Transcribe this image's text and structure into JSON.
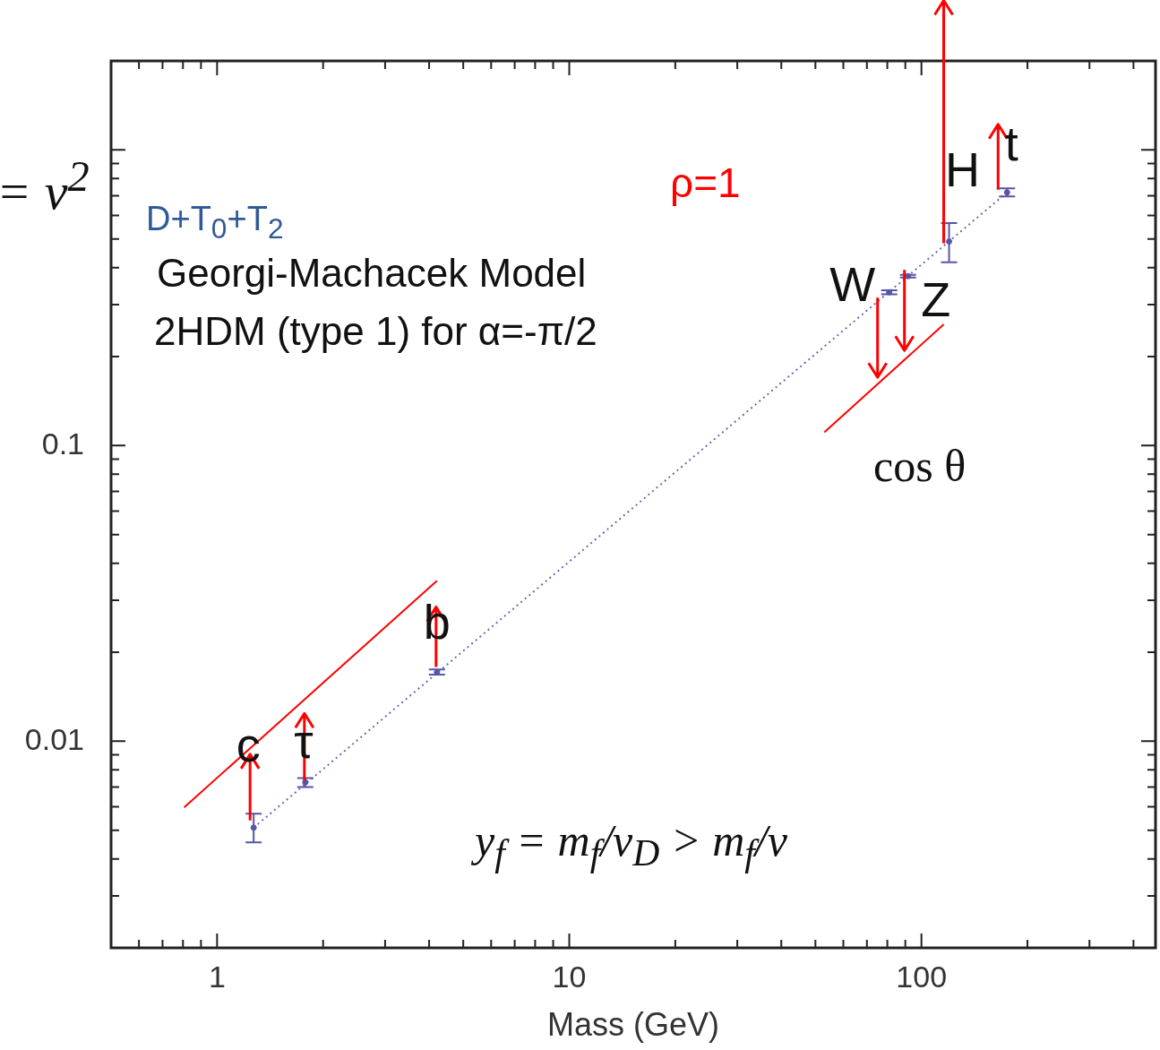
{
  "chart_data": {
    "type": "scatter",
    "xlabel": "Mass (GeV)",
    "log": "xy",
    "marker": "none",
    "xlim": [
      0.5,
      462
    ],
    "ylim": [
      0.002,
      2
    ],
    "xticks": [
      {
        "value": 0.6,
        "label": null
      },
      {
        "value": 0.7,
        "label": null
      },
      {
        "value": 0.8,
        "label": null
      },
      {
        "value": 0.9,
        "label": null
      },
      1,
      {
        "value": 2,
        "label": null
      },
      {
        "value": 3,
        "label": null
      },
      {
        "value": 4,
        "label": null
      },
      {
        "value": 5,
        "label": null
      },
      {
        "value": 6,
        "label": null
      },
      {
        "value": 7,
        "label": null
      },
      {
        "value": 8,
        "label": null
      },
      {
        "value": 9,
        "label": null
      },
      10,
      {
        "value": 20,
        "label": null
      },
      {
        "value": 30,
        "label": null
      },
      {
        "value": 40,
        "label": null
      },
      {
        "value": 50,
        "label": null
      },
      {
        "value": 60,
        "label": null
      },
      {
        "value": 70,
        "label": null
      },
      {
        "value": 80,
        "label": null
      },
      {
        "value": 90,
        "label": null
      },
      100,
      {
        "value": 200,
        "label": null
      },
      {
        "value": 300,
        "label": null
      },
      {
        "value": 400,
        "label": null
      }
    ],
    "yticks": [
      {
        "value": 0.003,
        "label": null
      },
      {
        "value": 0.004,
        "label": null
      },
      {
        "value": 0.005,
        "label": null
      },
      {
        "value": 0.006,
        "label": null
      },
      {
        "value": 0.007,
        "label": null
      },
      {
        "value": 0.008,
        "label": null
      },
      {
        "value": 0.009,
        "label": null
      },
      0.01,
      {
        "value": 0.02,
        "label": null
      },
      {
        "value": 0.03,
        "label": null
      },
      {
        "value": 0.04,
        "label": null
      },
      {
        "value": 0.05,
        "label": null
      },
      {
        "value": 0.06,
        "label": null
      },
      {
        "value": 0.07,
        "label": null
      },
      {
        "value": 0.08,
        "label": null
      },
      {
        "value": 0.09,
        "label": null
      },
      0.1,
      {
        "value": 0.2,
        "label": null
      },
      {
        "value": 0.3,
        "label": null
      },
      {
        "value": 0.4,
        "label": null
      },
      {
        "value": 0.5,
        "label": null
      },
      {
        "value": 0.6,
        "label": null
      },
      {
        "value": 0.7,
        "label": null
      },
      {
        "value": 0.8,
        "label": null
      },
      {
        "value": 0.9,
        "label": null
      },
      {
        "value": 1,
        "label": null
      }
    ],
    "series": [
      {
        "marker": "circle",
        "color": "#5656a8",
        "x": [
          1.27,
          1.78,
          4.21,
          81,
          91.6,
          119.8,
          175
        ],
        "values": [
          0.0051,
          0.00726,
          0.0171,
          0.33,
          0.374,
          0.49,
          0.718
        ],
        "errors": [
          [
            0.00455,
            0.00569
          ],
          [
            0.007,
            0.00751
          ],
          [
            0.0168,
            0.0175
          ],
          [
            0.325,
            0.335
          ],
          [
            0.37,
            0.378
          ],
          [
            0.417,
            0.566
          ],
          [
            0.696,
            0.741
          ]
        ]
      },
      {
        "type": "line",
        "color": "#6a6ab4",
        "line_style": "dotted",
        "x": [
          1.27,
          175
        ],
        "values": [
          0.0051,
          0.718
        ]
      },
      {
        "type": "line",
        "color": "#ff0000",
        "x": [
          0.806,
          4.21
        ],
        "values": [
          0.00597,
          0.0349
        ]
      },
      {
        "type": "line",
        "color": "#ff0000",
        "x": [
          53,
          115.7
        ],
        "values": [
          0.111,
          0.257
        ]
      }
    ],
    "annotations": [
      "= v$^{2}$",
      "D+T$_{0}$+T$_{2}$",
      "Georgi-Machacek Model",
      "2HDM (type 1) for α=-π/2",
      "ρ=1",
      "cos θ",
      "y$_{f}$ = m$_{f}$/v$_{D}$ > m$_{f}$/v",
      {
        "text": "c",
        "x": 1.27,
        "y": 0.0051
      },
      {
        "text": "τ",
        "x": 1.78,
        "y": 0.00726
      },
      {
        "text": "b",
        "x": 4.21,
        "y": 0.0171
      },
      {
        "text": "W",
        "x": 81,
        "y": 0.33
      },
      {
        "text": "Z",
        "x": 91.6,
        "y": 0.374
      },
      {
        "text": "H",
        "x": 119.8,
        "y": 0.49
      },
      {
        "text": "t",
        "x": 175,
        "y": 0.718
      }
    ]
  }
}
